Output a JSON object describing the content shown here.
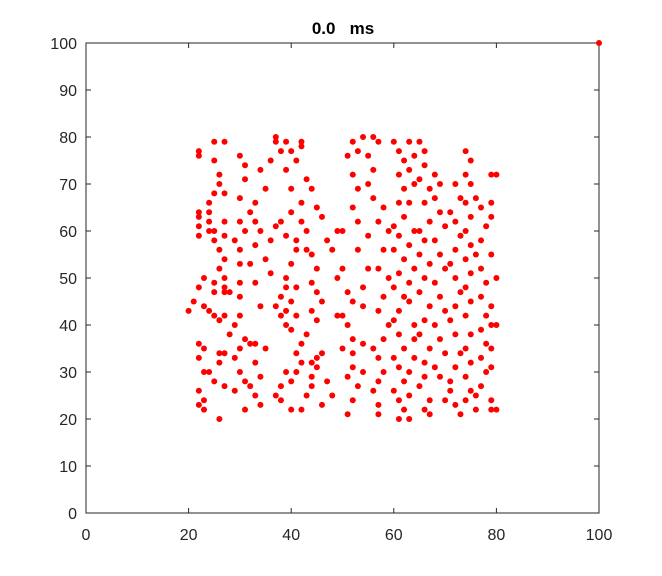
{
  "chart_data": {
    "type": "scatter",
    "title": "0.0   ms",
    "xlabel": "",
    "ylabel": "",
    "xlim": [
      0,
      100
    ],
    "ylim": [
      0,
      100
    ],
    "xticks": [
      0,
      20,
      40,
      60,
      80,
      100
    ],
    "yticks": [
      0,
      10,
      20,
      30,
      40,
      50,
      60,
      70,
      80,
      90,
      100
    ],
    "grid": false,
    "marker_color": "#ff0000",
    "points": [
      [
        100,
        100
      ],
      [
        22,
        77
      ],
      [
        22,
        76
      ],
      [
        25,
        79
      ],
      [
        27,
        79
      ],
      [
        25,
        75
      ],
      [
        26,
        72
      ],
      [
        26,
        70
      ],
      [
        25,
        68
      ],
      [
        27,
        68
      ],
      [
        24,
        66
      ],
      [
        22,
        64
      ],
      [
        22,
        63
      ],
      [
        24,
        64
      ],
      [
        22,
        61
      ],
      [
        22,
        59
      ],
      [
        24,
        62
      ],
      [
        24,
        60
      ],
      [
        25,
        58
      ],
      [
        25,
        60
      ],
      [
        27,
        62
      ],
      [
        27,
        59
      ],
      [
        26,
        56
      ],
      [
        27,
        54
      ],
      [
        26,
        52
      ],
      [
        27,
        50
      ],
      [
        25,
        49
      ],
      [
        27,
        48
      ],
      [
        25,
        47
      ],
      [
        27,
        47
      ],
      [
        28,
        47
      ],
      [
        23,
        50
      ],
      [
        22,
        48
      ],
      [
        21,
        45
      ],
      [
        20,
        43
      ],
      [
        23,
        44
      ],
      [
        24,
        43
      ],
      [
        25,
        42
      ],
      [
        26,
        41
      ],
      [
        22,
        36
      ],
      [
        23,
        35
      ],
      [
        22,
        33
      ],
      [
        24,
        30
      ],
      [
        23,
        30
      ],
      [
        22,
        26
      ],
      [
        23,
        24
      ],
      [
        22,
        23
      ],
      [
        23,
        22
      ],
      [
        26,
        20
      ],
      [
        25,
        28
      ],
      [
        27,
        27
      ],
      [
        26,
        32
      ],
      [
        26,
        34
      ],
      [
        27,
        34
      ],
      [
        28,
        38
      ],
      [
        27,
        42
      ],
      [
        30,
        76
      ],
      [
        31,
        74
      ],
      [
        31,
        71
      ],
      [
        30,
        67
      ],
      [
        32,
        64
      ],
      [
        30,
        62
      ],
      [
        31,
        60
      ],
      [
        29,
        58
      ],
      [
        30,
        56
      ],
      [
        30,
        53
      ],
      [
        30,
        49
      ],
      [
        30,
        46
      ],
      [
        30,
        42
      ],
      [
        29,
        40
      ],
      [
        31,
        37
      ],
      [
        30,
        35
      ],
      [
        32,
        36
      ],
      [
        33,
        36
      ],
      [
        29,
        33
      ],
      [
        30,
        30
      ],
      [
        31,
        28
      ],
      [
        29,
        26
      ],
      [
        33,
        25
      ],
      [
        34,
        23
      ],
      [
        31,
        22
      ],
      [
        32,
        27
      ],
      [
        34,
        29
      ],
      [
        33,
        32
      ],
      [
        35,
        35
      ],
      [
        34,
        44
      ],
      [
        33,
        49
      ],
      [
        32,
        53
      ],
      [
        33,
        57
      ],
      [
        34,
        60
      ],
      [
        33,
        62
      ],
      [
        33,
        66
      ],
      [
        35,
        69
      ],
      [
        34,
        73
      ],
      [
        36,
        75
      ],
      [
        37,
        80
      ],
      [
        37,
        79
      ],
      [
        38,
        77
      ],
      [
        39,
        79
      ],
      [
        40,
        77
      ],
      [
        41,
        75
      ],
      [
        39,
        73
      ],
      [
        40,
        69
      ],
      [
        42,
        66
      ],
      [
        40,
        64
      ],
      [
        38,
        62
      ],
      [
        37,
        61
      ],
      [
        39,
        59
      ],
      [
        36,
        58
      ],
      [
        35,
        54
      ],
      [
        36,
        51
      ],
      [
        38,
        46
      ],
      [
        37,
        44
      ],
      [
        39,
        43
      ],
      [
        38,
        42
      ],
      [
        39,
        40
      ],
      [
        40,
        39
      ],
      [
        41,
        42
      ],
      [
        40,
        45
      ],
      [
        41,
        48
      ],
      [
        39,
        48
      ],
      [
        39,
        50
      ],
      [
        40,
        53
      ],
      [
        41,
        56
      ],
      [
        42,
        62
      ],
      [
        43,
        60
      ],
      [
        41,
        58
      ],
      [
        43,
        56
      ],
      [
        44,
        55
      ],
      [
        45,
        52
      ],
      [
        44,
        49
      ],
      [
        45,
        47
      ],
      [
        46,
        45
      ],
      [
        44,
        43
      ],
      [
        45,
        41
      ],
      [
        43,
        38
      ],
      [
        42,
        36
      ],
      [
        41,
        34
      ],
      [
        42,
        32
      ],
      [
        41,
        30
      ],
      [
        40,
        28
      ],
      [
        38,
        27
      ],
      [
        37,
        25
      ],
      [
        38,
        24
      ],
      [
        39,
        30
      ],
      [
        40,
        22
      ],
      [
        42,
        22
      ],
      [
        43,
        25
      ],
      [
        44,
        27
      ],
      [
        44,
        29
      ],
      [
        45,
        31
      ],
      [
        44,
        32
      ],
      [
        45,
        33
      ],
      [
        46,
        34
      ],
      [
        47,
        28
      ],
      [
        48,
        25
      ],
      [
        46,
        23
      ],
      [
        42,
        79
      ],
      [
        42,
        78
      ],
      [
        43,
        71
      ],
      [
        44,
        69
      ],
      [
        45,
        65
      ],
      [
        46,
        63
      ],
      [
        47,
        58
      ],
      [
        48,
        56
      ],
      [
        49,
        60
      ],
      [
        50,
        60
      ],
      [
        50,
        52
      ],
      [
        49,
        50
      ],
      [
        51,
        47
      ],
      [
        52,
        45
      ],
      [
        50,
        42
      ],
      [
        51,
        40
      ],
      [
        52,
        37
      ],
      [
        52,
        34
      ],
      [
        52,
        31
      ],
      [
        51,
        29
      ],
      [
        53,
        27
      ],
      [
        52,
        24
      ],
      [
        51,
        21
      ],
      [
        50,
        35
      ],
      [
        49,
        42
      ],
      [
        54,
        30
      ],
      [
        54,
        36
      ],
      [
        54,
        44
      ],
      [
        54,
        48
      ],
      [
        55,
        52
      ],
      [
        53,
        56
      ],
      [
        55,
        59
      ],
      [
        53,
        62
      ],
      [
        52,
        65
      ],
      [
        53,
        69
      ],
      [
        52,
        72
      ],
      [
        51,
        76
      ],
      [
        53,
        77
      ],
      [
        52,
        79
      ],
      [
        54,
        80
      ],
      [
        56,
        80
      ],
      [
        57,
        79
      ],
      [
        55,
        76
      ],
      [
        56,
        73
      ],
      [
        55,
        70
      ],
      [
        56,
        67
      ],
      [
        58,
        65
      ],
      [
        57,
        62
      ],
      [
        59,
        60
      ],
      [
        58,
        56
      ],
      [
        57,
        52
      ],
      [
        59,
        50
      ],
      [
        58,
        46
      ],
      [
        57,
        43
      ],
      [
        59,
        40
      ],
      [
        58,
        37
      ],
      [
        56,
        35
      ],
      [
        57,
        33
      ],
      [
        58,
        30
      ],
      [
        57,
        28
      ],
      [
        56,
        26
      ],
      [
        57,
        23
      ],
      [
        57,
        21
      ],
      [
        60,
        79
      ],
      [
        61,
        77
      ],
      [
        62,
        75
      ],
      [
        61,
        72
      ],
      [
        62,
        69
      ],
      [
        61,
        66
      ],
      [
        62,
        63
      ],
      [
        60,
        61
      ],
      [
        61,
        59
      ],
      [
        60,
        56
      ],
      [
        62,
        54
      ],
      [
        61,
        51
      ],
      [
        60,
        48
      ],
      [
        62,
        46
      ],
      [
        61,
        43
      ],
      [
        60,
        41
      ],
      [
        61,
        38
      ],
      [
        62,
        35
      ],
      [
        60,
        33
      ],
      [
        61,
        31
      ],
      [
        62,
        28
      ],
      [
        60,
        26
      ],
      [
        61,
        24
      ],
      [
        62,
        22
      ],
      [
        61,
        20
      ],
      [
        63,
        20
      ],
      [
        63,
        25
      ],
      [
        63,
        30
      ],
      [
        64,
        33
      ],
      [
        64,
        37
      ],
      [
        64,
        40
      ],
      [
        63,
        45
      ],
      [
        63,
        49
      ],
      [
        64,
        52
      ],
      [
        63,
        57
      ],
      [
        64,
        60
      ],
      [
        63,
        66
      ],
      [
        64,
        70
      ],
      [
        63,
        73
      ],
      [
        64,
        76
      ],
      [
        63,
        79
      ],
      [
        65,
        79
      ],
      [
        66,
        77
      ],
      [
        66,
        74
      ],
      [
        65,
        71
      ],
      [
        67,
        69
      ],
      [
        66,
        66
      ],
      [
        67,
        62
      ],
      [
        65,
        60
      ],
      [
        66,
        58
      ],
      [
        65,
        55
      ],
      [
        67,
        53
      ],
      [
        66,
        50
      ],
      [
        65,
        47
      ],
      [
        67,
        44
      ],
      [
        66,
        41
      ],
      [
        65,
        38
      ],
      [
        67,
        35
      ],
      [
        66,
        32
      ],
      [
        66,
        29
      ],
      [
        65,
        27
      ],
      [
        67,
        24
      ],
      [
        66,
        22
      ],
      [
        67,
        21
      ],
      [
        68,
        72
      ],
      [
        69,
        70
      ],
      [
        68,
        67
      ],
      [
        69,
        64
      ],
      [
        70,
        61
      ],
      [
        68,
        58
      ],
      [
        69,
        55
      ],
      [
        70,
        52
      ],
      [
        68,
        49
      ],
      [
        69,
        46
      ],
      [
        70,
        43
      ],
      [
        68,
        40
      ],
      [
        69,
        37
      ],
      [
        70,
        34
      ],
      [
        68,
        31
      ],
      [
        69,
        29
      ],
      [
        71,
        26
      ],
      [
        70,
        24
      ],
      [
        72,
        23
      ],
      [
        73,
        21
      ],
      [
        71,
        28
      ],
      [
        72,
        31
      ],
      [
        73,
        34
      ],
      [
        72,
        38
      ],
      [
        71,
        41
      ],
      [
        72,
        44
      ],
      [
        73,
        47
      ],
      [
        72,
        50
      ],
      [
        71,
        53
      ],
      [
        72,
        56
      ],
      [
        73,
        59
      ],
      [
        72,
        62
      ],
      [
        71,
        64
      ],
      [
        73,
        67
      ],
      [
        72,
        70
      ],
      [
        74,
        72
      ],
      [
        75,
        75
      ],
      [
        74,
        77
      ],
      [
        75,
        70
      ],
      [
        74,
        66
      ],
      [
        75,
        63
      ],
      [
        74,
        60
      ],
      [
        75,
        57
      ],
      [
        74,
        54
      ],
      [
        75,
        51
      ],
      [
        74,
        48
      ],
      [
        75,
        45
      ],
      [
        74,
        42
      ],
      [
        75,
        38
      ],
      [
        74,
        35
      ],
      [
        75,
        32
      ],
      [
        74,
        29
      ],
      [
        75,
        26
      ],
      [
        74,
        24
      ],
      [
        76,
        22
      ],
      [
        76,
        67
      ],
      [
        77,
        65
      ],
      [
        78,
        61
      ],
      [
        77,
        58
      ],
      [
        76,
        55
      ],
      [
        77,
        52
      ],
      [
        78,
        49
      ],
      [
        77,
        46
      ],
      [
        78,
        42
      ],
      [
        77,
        39
      ],
      [
        78,
        36
      ],
      [
        77,
        33
      ],
      [
        78,
        30
      ],
      [
        77,
        27
      ],
      [
        76,
        25
      ],
      [
        79,
        22
      ],
      [
        80,
        22
      ],
      [
        79,
        24
      ],
      [
        79,
        31
      ],
      [
        79,
        35
      ],
      [
        79,
        40
      ],
      [
        80,
        40
      ],
      [
        79,
        44
      ],
      [
        80,
        50
      ],
      [
        79,
        55
      ],
      [
        79,
        63
      ],
      [
        79,
        66
      ],
      [
        80,
        72
      ],
      [
        79,
        72
      ]
    ]
  }
}
